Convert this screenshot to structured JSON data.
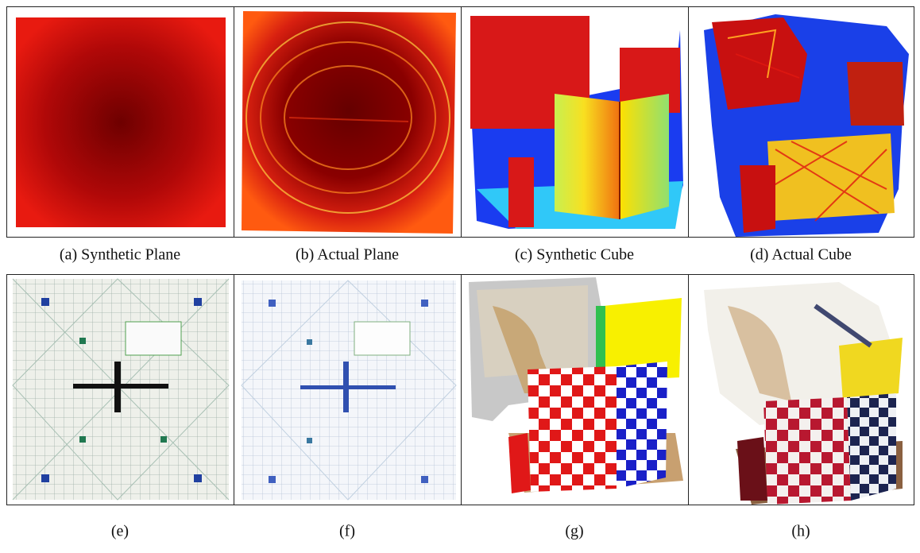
{
  "figure": {
    "panels": [
      {
        "caption": "(a) Synthetic Plane"
      },
      {
        "caption": "(b) Actual Plane"
      },
      {
        "caption": "(c) Synthetic Cube"
      },
      {
        "caption": "(d) Actual Cube"
      },
      {
        "caption": "(e)"
      },
      {
        "caption": "(f)"
      },
      {
        "caption": "(g)"
      },
      {
        "caption": "(h)"
      }
    ]
  }
}
